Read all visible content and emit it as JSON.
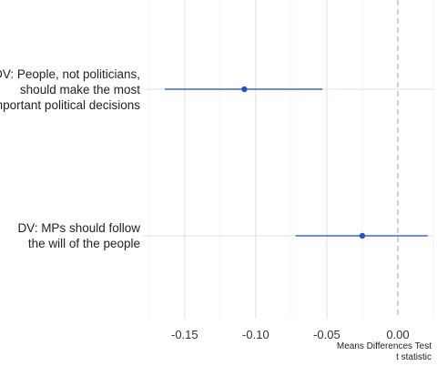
{
  "chart_data": {
    "type": "forest",
    "title": "",
    "xlabel": "",
    "ylabel": "",
    "caption": [
      "Means Differences Test",
      "t statistic"
    ],
    "xlim": [
      -0.18,
      0.025
    ],
    "x_ticks": [
      -0.15,
      -0.1,
      -0.05,
      0.0
    ],
    "x_tick_labels": [
      "-0.15",
      "-0.10",
      "-0.05",
      "0.00"
    ],
    "reference_line": 0.0,
    "grid": true,
    "point_color": "#2a52be",
    "line_color": "#4169c8",
    "categories": [
      {
        "label_lines": [
          "DV: People, not politicians,",
          "should make the most",
          "important political decisions"
        ],
        "estimate": -0.108,
        "ci_low": -0.164,
        "ci_high": -0.053
      },
      {
        "label_lines": [
          "DV: MPs should follow",
          "the will of the people"
        ],
        "estimate": -0.025,
        "ci_low": -0.072,
        "ci_high": 0.021
      }
    ]
  }
}
